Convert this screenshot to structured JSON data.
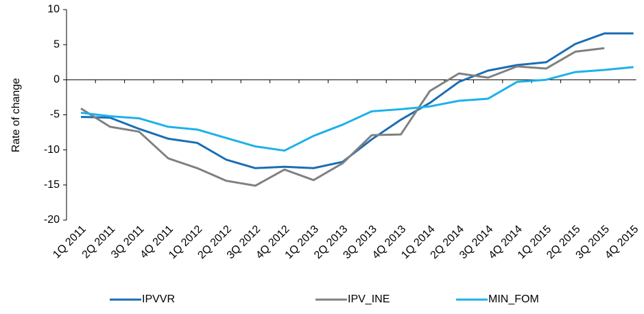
{
  "chart_data": {
    "type": "line",
    "y_label": "Rate of change",
    "categories": [
      "1Q 2011",
      "2Q 2011",
      "3Q 2011",
      "4Q 2011",
      "1Q 2012",
      "2Q 2012",
      "3Q 2012",
      "4Q 2012",
      "1Q 2013",
      "2Q 2013",
      "3Q 2013",
      "4Q 2013",
      "1Q 2014",
      "2Q 2014",
      "3Q 2014",
      "4Q 2014",
      "1Q 2015",
      "2Q 2015",
      "3Q 2015",
      "4Q 2015"
    ],
    "series": [
      {
        "name": "IPVVR",
        "color": "#1a6db4",
        "values": [
          -5.3,
          -5.4,
          -7.0,
          -8.4,
          -9.0,
          -11.4,
          -12.6,
          -12.4,
          -12.6,
          -11.7,
          -8.5,
          -5.7,
          -3.3,
          -0.3,
          1.3,
          2.1,
          2.5,
          5.1,
          6.6,
          6.6
        ]
      },
      {
        "name": "IPV_INE",
        "color": "#808080",
        "values": [
          -4.1,
          -6.7,
          -7.4,
          -11.2,
          -12.6,
          -14.4,
          -15.1,
          -12.8,
          -14.3,
          -11.9,
          -7.9,
          -7.8,
          -1.6,
          0.9,
          0.3,
          1.9,
          1.6,
          4.0,
          4.5,
          null
        ]
      },
      {
        "name": "MIN_FOM",
        "color": "#1cb1ea",
        "values": [
          -4.7,
          -5.2,
          -5.5,
          -6.7,
          -7.1,
          -8.3,
          -9.5,
          -10.1,
          -8.0,
          -6.4,
          -4.5,
          -4.2,
          -3.8,
          -3.0,
          -2.7,
          -0.3,
          0.0,
          1.1,
          1.4,
          1.8
        ]
      }
    ],
    "ylim": [
      -20,
      10
    ],
    "yticks": [
      -20,
      -15,
      -10,
      -5,
      0,
      5,
      10
    ],
    "grid": false,
    "legend": "bottom"
  }
}
